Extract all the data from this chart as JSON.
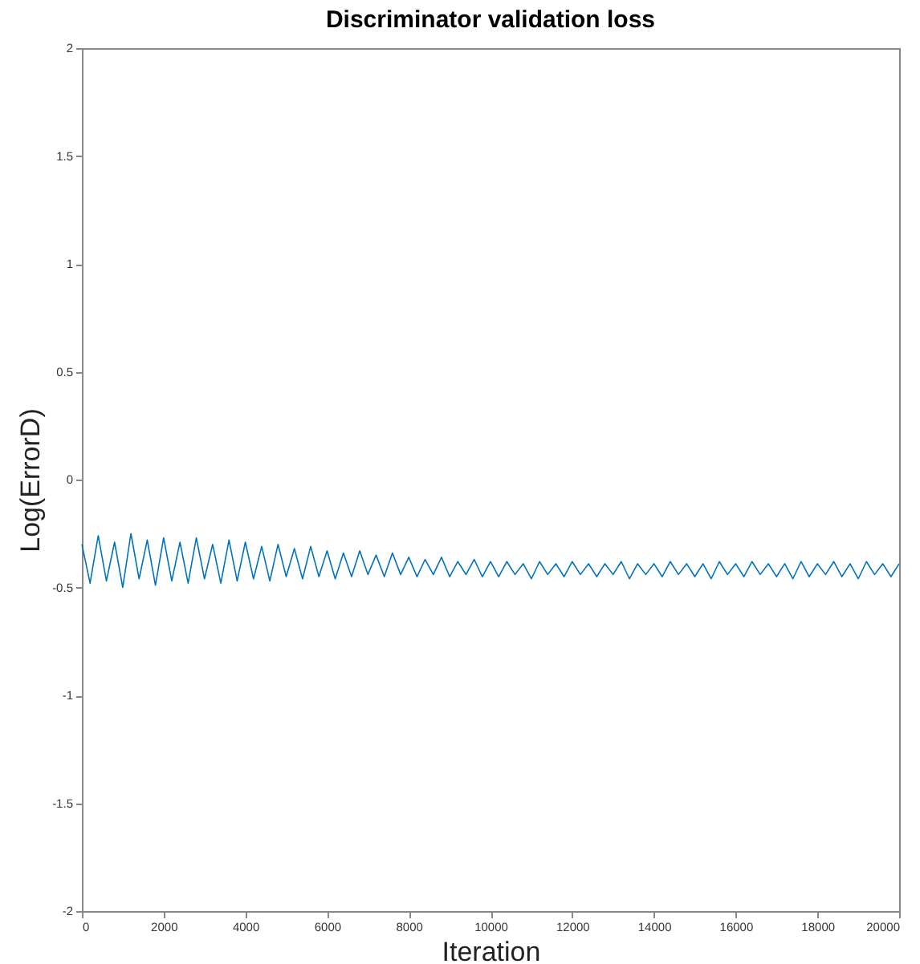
{
  "chart_data": {
    "type": "line",
    "title": "Discriminator validation loss",
    "xlabel": "Iteration",
    "ylabel": "Log(ErrorD)",
    "x": [
      0,
      200,
      400,
      600,
      800,
      1000,
      1200,
      1400,
      1600,
      1800,
      2000,
      2200,
      2400,
      2600,
      2800,
      3000,
      3200,
      3400,
      3600,
      3800,
      4000,
      4200,
      4400,
      4600,
      4800,
      5000,
      5200,
      5400,
      5600,
      5800,
      6000,
      6200,
      6400,
      6600,
      6800,
      7000,
      7200,
      7400,
      7600,
      7800,
      8000,
      8200,
      8400,
      8600,
      8800,
      9000,
      9200,
      9400,
      9600,
      9800,
      10000,
      10200,
      10400,
      10600,
      10800,
      11000,
      11200,
      11400,
      11600,
      11800,
      12000,
      12200,
      12400,
      12600,
      12800,
      13000,
      13200,
      13400,
      13600,
      13800,
      14000,
      14200,
      14400,
      14600,
      14800,
      15000,
      15200,
      15400,
      15600,
      15800,
      16000,
      16200,
      16400,
      16600,
      16800,
      17000,
      17200,
      17400,
      17600,
      17800,
      18000,
      18200,
      18400,
      18600,
      18800,
      19000,
      19200,
      19400,
      19600,
      19800,
      20000
    ],
    "series": [
      {
        "color": "#0072bd",
        "values": [
          -0.3,
          -0.48,
          -0.26,
          -0.47,
          -0.29,
          -0.5,
          -0.25,
          -0.46,
          -0.28,
          -0.49,
          -0.27,
          -0.47,
          -0.29,
          -0.48,
          -0.27,
          -0.46,
          -0.3,
          -0.48,
          -0.28,
          -0.47,
          -0.29,
          -0.46,
          -0.31,
          -0.47,
          -0.3,
          -0.45,
          -0.32,
          -0.46,
          -0.31,
          -0.45,
          -0.33,
          -0.46,
          -0.34,
          -0.45,
          -0.33,
          -0.44,
          -0.35,
          -0.45,
          -0.34,
          -0.44,
          -0.36,
          -0.45,
          -0.37,
          -0.44,
          -0.36,
          -0.45,
          -0.38,
          -0.44,
          -0.37,
          -0.45,
          -0.38,
          -0.45,
          -0.38,
          -0.44,
          -0.39,
          -0.46,
          -0.38,
          -0.44,
          -0.39,
          -0.45,
          -0.38,
          -0.44,
          -0.39,
          -0.45,
          -0.39,
          -0.44,
          -0.38,
          -0.46,
          -0.39,
          -0.44,
          -0.39,
          -0.45,
          -0.38,
          -0.44,
          -0.39,
          -0.45,
          -0.39,
          -0.46,
          -0.38,
          -0.44,
          -0.39,
          -0.45,
          -0.38,
          -0.44,
          -0.39,
          -0.45,
          -0.39,
          -0.46,
          -0.38,
          -0.45,
          -0.39,
          -0.44,
          -0.38,
          -0.45,
          -0.39,
          -0.46,
          -0.38,
          -0.44,
          -0.39,
          -0.45,
          -0.39
        ]
      }
    ],
    "xlim": [
      0,
      20000
    ],
    "xticks": [
      0,
      2000,
      4000,
      6000,
      8000,
      10000,
      12000,
      14000,
      16000,
      18000,
      20000
    ],
    "ylim": [
      -2,
      2
    ],
    "yticks": [
      -2,
      -1.5,
      -1,
      -0.5,
      0,
      0.5,
      1,
      1.5,
      2
    ],
    "grid": false
  }
}
